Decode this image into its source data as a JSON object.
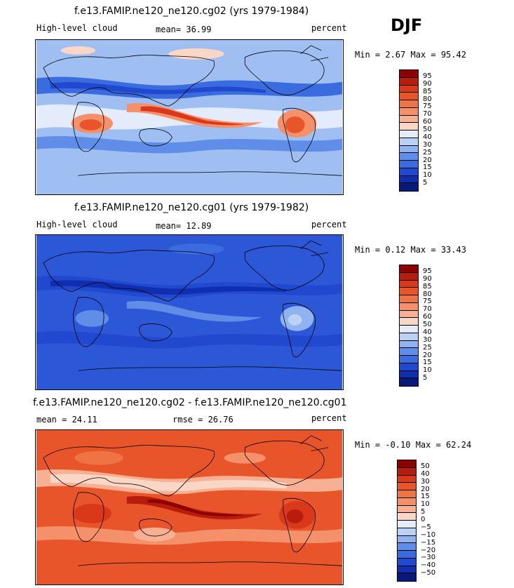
{
  "season": "DJF",
  "panels": [
    {
      "title": "f.e13.FAMIP.ne120_ne120.cg02 (yrs 1979-1984)",
      "left_label": "High-level cloud",
      "mean_label": "mean= 36.99",
      "units": "percent",
      "minmax": "Min = 2.67 Max = 95.42",
      "palette": "abs",
      "background": "#9fbff3"
    },
    {
      "title": "f.e13.FAMIP.ne120_ne120.cg01 (yrs 1979-1982)",
      "left_label": "High-level cloud",
      "mean_label": "mean= 12.89",
      "units": "percent",
      "minmax": "Min = 0.12 Max = 33.43",
      "palette": "abs",
      "background": "#2c57d6"
    },
    {
      "title": "f.e13.FAMIP.ne120_ne120.cg02 - f.e13.FAMIP.ne120_ne120.cg01",
      "left_label": "mean = 24.11",
      "mean_label": "rmse = 26.76",
      "units": "percent",
      "minmax": "Min = -0.10 Max = 62.24",
      "palette": "diff",
      "background": "#e8552b"
    }
  ],
  "colorbars": {
    "abs": {
      "labels": [
        "95",
        "90",
        "85",
        "80",
        "75",
        "70",
        "60",
        "50",
        "40",
        "30",
        "25",
        "20",
        "15",
        "10",
        "5"
      ],
      "colors": [
        "#8b0000",
        "#b71c0c",
        "#d9391a",
        "#e8552b",
        "#f07344",
        "#f4916a",
        "#f7b093",
        "#fad6c6",
        "#e4ecfb",
        "#bcd1f6",
        "#8fb2f0",
        "#5f8de7",
        "#3a6bdf",
        "#2149cf",
        "#0f2fb0",
        "#071a7a"
      ]
    },
    "diff": {
      "labels": [
        "50",
        "40",
        "30",
        "20",
        "15",
        "10",
        "5",
        "0",
        "−5",
        "−10",
        "−15",
        "−20",
        "−30",
        "−40",
        "−50"
      ],
      "colors": [
        "#8b0000",
        "#b71c0c",
        "#d9391a",
        "#e8552b",
        "#f07344",
        "#f4916a",
        "#f7b093",
        "#fad6c6",
        "#e4ecfb",
        "#bcd1f6",
        "#8fb2f0",
        "#5f8de7",
        "#3a6bdf",
        "#2149cf",
        "#0f2fb0",
        "#071a7a"
      ]
    }
  }
}
